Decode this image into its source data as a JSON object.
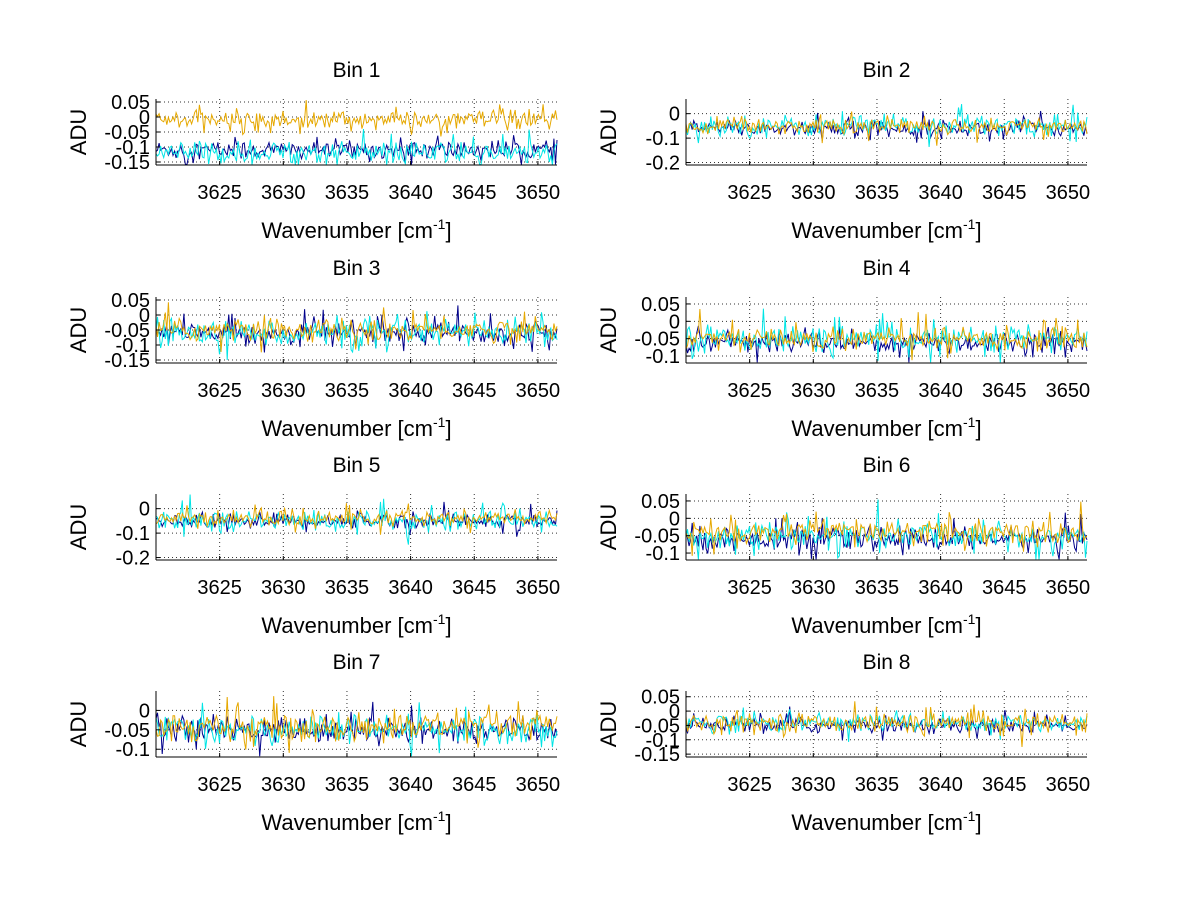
{
  "chart_data": {
    "type": "line",
    "layout": "4x2 grid of subplots",
    "xlim": [
      3620,
      3651.5
    ],
    "xticks": [
      3625,
      3630,
      3635,
      3640,
      3645,
      3650
    ],
    "xtick_labels": [
      "3625",
      "3630",
      "3635",
      "3640",
      "3645",
      "3650"
    ],
    "xlabel_main": "Wavenumber [cm",
    "xlabel_sup": "-1",
    "xlabel_close": "]",
    "ylabel": "ADU",
    "series_colors": [
      "#00008b",
      "#00e5e5",
      "#e6a800"
    ],
    "series_names": [
      "series 1 (dark blue)",
      "series 2 (cyan)",
      "series 3 (orange)"
    ],
    "panels": [
      {
        "title": "Bin 1",
        "ylim": [
          -0.16,
          0.06
        ],
        "yticks": [
          0.05,
          0,
          -0.05,
          -0.1,
          -0.15
        ],
        "ytick_labels": [
          "0.05",
          "0",
          "-0.05",
          "-0.1",
          "-0.15"
        ],
        "series": [
          {
            "mean": -0.11,
            "amp": 0.03
          },
          {
            "mean": -0.12,
            "amp": 0.035
          },
          {
            "mean": -0.01,
            "amp": 0.03
          }
        ]
      },
      {
        "title": "Bin 2",
        "ylim": [
          -0.21,
          0.06
        ],
        "yticks": [
          0,
          -0.1,
          -0.2
        ],
        "ytick_labels": [
          "0",
          "-0.1",
          "-0.2"
        ],
        "series": [
          {
            "mean": -0.06,
            "amp": 0.03
          },
          {
            "mean": -0.05,
            "amp": 0.04
          },
          {
            "mean": -0.05,
            "amp": 0.03
          }
        ]
      },
      {
        "title": "Bin 3",
        "ylim": [
          -0.16,
          0.06
        ],
        "yticks": [
          0.05,
          0,
          -0.05,
          -0.1,
          -0.15
        ],
        "ytick_labels": [
          "0.05",
          "0",
          "-0.05",
          "-0.1",
          "-0.15"
        ],
        "series": [
          {
            "mean": -0.06,
            "amp": 0.035
          },
          {
            "mean": -0.06,
            "amp": 0.04
          },
          {
            "mean": -0.05,
            "amp": 0.035
          }
        ]
      },
      {
        "title": "Bin 4",
        "ylim": [
          -0.12,
          0.07
        ],
        "yticks": [
          0.05,
          0,
          -0.05,
          -0.1
        ],
        "ytick_labels": [
          "0.05",
          "0",
          "-0.05",
          "-0.1"
        ],
        "series": [
          {
            "mean": -0.06,
            "amp": 0.03
          },
          {
            "mean": -0.05,
            "amp": 0.035
          },
          {
            "mean": -0.05,
            "amp": 0.03
          }
        ]
      },
      {
        "title": "Bin 5",
        "ylim": [
          -0.21,
          0.06
        ],
        "yticks": [
          0,
          -0.1,
          -0.2
        ],
        "ytick_labels": [
          "0",
          "-0.1",
          "-0.2"
        ],
        "series": [
          {
            "mean": -0.05,
            "amp": 0.03
          },
          {
            "mean": -0.05,
            "amp": 0.04
          },
          {
            "mean": -0.04,
            "amp": 0.03
          }
        ]
      },
      {
        "title": "Bin 6",
        "ylim": [
          -0.12,
          0.07
        ],
        "yticks": [
          0.05,
          0,
          -0.05,
          -0.1
        ],
        "ytick_labels": [
          "0.05",
          "0",
          "-0.05",
          "-0.1"
        ],
        "series": [
          {
            "mean": -0.06,
            "amp": 0.03
          },
          {
            "mean": -0.05,
            "amp": 0.035
          },
          {
            "mean": -0.04,
            "amp": 0.035
          }
        ]
      },
      {
        "title": "Bin 7",
        "ylim": [
          -0.12,
          0.05
        ],
        "yticks": [
          0,
          -0.05,
          -0.1
        ],
        "ytick_labels": [
          "0",
          "-0.05",
          "-0.1"
        ],
        "series": [
          {
            "mean": -0.05,
            "amp": 0.03
          },
          {
            "mean": -0.05,
            "amp": 0.035
          },
          {
            "mean": -0.04,
            "amp": 0.035
          }
        ]
      },
      {
        "title": "Bin 8",
        "ylim": [
          -0.16,
          0.07
        ],
        "yticks": [
          0.05,
          0,
          -0.05,
          -0.1,
          -0.15
        ],
        "ytick_labels": [
          "0.05",
          "0",
          "-0.05",
          "-0.1",
          "-0.15"
        ],
        "series": [
          {
            "mean": -0.05,
            "amp": 0.025
          },
          {
            "mean": -0.04,
            "amp": 0.03
          },
          {
            "mean": -0.04,
            "amp": 0.03
          }
        ]
      }
    ]
  }
}
